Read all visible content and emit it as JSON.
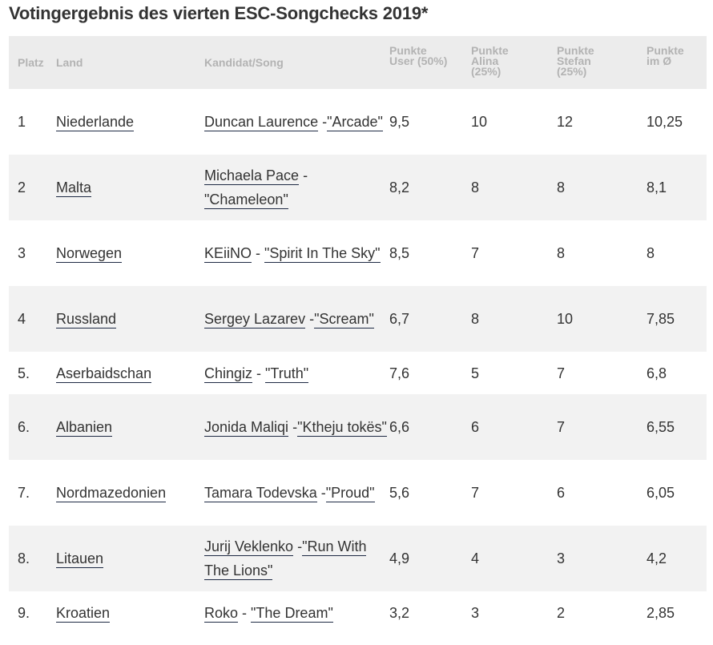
{
  "title": "Votingergebnis des vierten ESC-Songchecks 2019*",
  "headers": {
    "platz": "Platz",
    "land": "Land",
    "song": "Kandidat/Song",
    "user": [
      "Punkte",
      "User (50%)"
    ],
    "alina": [
      "Punkte",
      "Alina",
      "(25%)"
    ],
    "stefan": [
      "Punkte",
      "Stefan",
      "(25%)"
    ],
    "avg": [
      "Punkte",
      "im Ø"
    ]
  },
  "rows": [
    {
      "platz": "1",
      "land": "Niederlande",
      "artist": "Duncan Laurence",
      "sep": " -",
      "song": "\"Arcade\"",
      "user": "9,5",
      "alina": "10",
      "stefan": "12",
      "avg": "10,25"
    },
    {
      "platz": "2",
      "land": "Malta",
      "artist": "Michaela Pace",
      "sep": " -",
      "song": "\"Chameleon\"",
      "user": "8,2",
      "alina": "8",
      "stefan": "8",
      "avg": "8,1"
    },
    {
      "platz": "3",
      "land": "Norwegen",
      "artist": "KEiiNO",
      "sep": " - ",
      "song": "\"Spirit In The Sky\"",
      "user": "8,5",
      "alina": "7",
      "stefan": "8",
      "avg": "8"
    },
    {
      "platz": "4",
      "land": "Russland",
      "artist": "Sergey Lazarev",
      "sep": " -",
      "song": "\"Scream\"",
      "user": "6,7",
      "alina": "8",
      "stefan": "10",
      "avg": "7,85"
    },
    {
      "platz": "5.",
      "land": "Aserbaidschan",
      "artist": "Chingiz",
      "sep": " - ",
      "song": "\"Truth\"",
      "user": "7,6",
      "alina": "5",
      "stefan": "7",
      "avg": "6,8"
    },
    {
      "platz": "6.",
      "land": "Albanien",
      "artist": "Jonida Maliqi",
      "sep": " -",
      "song": "\"Ktheju tokës\"",
      "user": "6,6",
      "alina": "6",
      "stefan": "7",
      "avg": "6,55"
    },
    {
      "platz": "7.",
      "land": "Nordmazedonien",
      "artist": "Tamara Todevska",
      "sep": " -",
      "song": "\"Proud\"",
      "user": "5,6",
      "alina": "7",
      "stefan": "6",
      "avg": "6,05"
    },
    {
      "platz": "8.",
      "land": "Litauen",
      "artist": "Jurij Veklenko",
      "sep": " -",
      "song": "\"Run With The Lions\"",
      "user": "4,9",
      "alina": "4",
      "stefan": "3",
      "avg": "4,2"
    },
    {
      "platz": "9.",
      "land": "Kroatien",
      "artist": "Roko",
      "sep": " - ",
      "song": "\"The Dream\"",
      "user": "3,2",
      "alina": "3",
      "stefan": "2",
      "avg": "2,85"
    }
  ]
}
